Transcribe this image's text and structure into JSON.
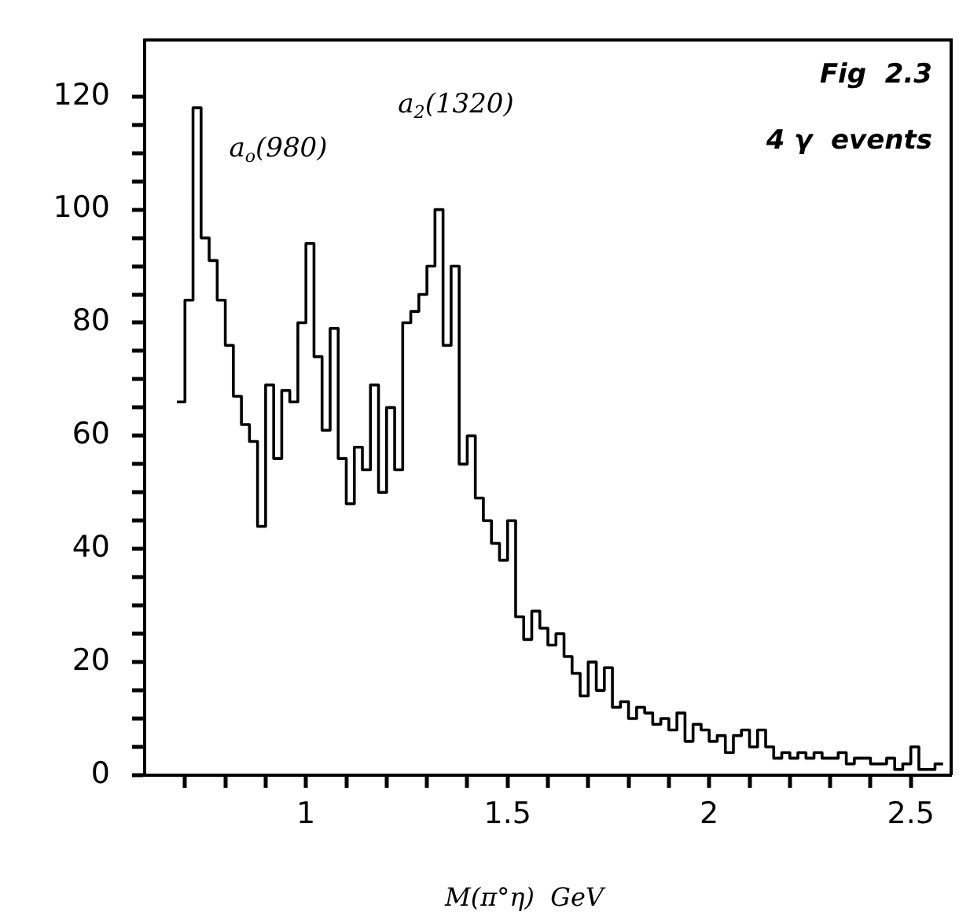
{
  "chart_data": {
    "type": "histogram",
    "xlabel": "M(π°η)  GeV",
    "annotations": [
      "a$_{o}$(980)",
      "a$_{2}$(1320)",
      "Fig  2.3",
      "4 γ  events"
    ],
    "bins": [
      0.68,
      0.7,
      0.72,
      0.74,
      0.76,
      0.78,
      0.8,
      0.82,
      0.84,
      0.86,
      0.88,
      0.9,
      0.92,
      0.94,
      0.96,
      0.98,
      1.0,
      1.02,
      1.04,
      1.06,
      1.08,
      1.1,
      1.12,
      1.14,
      1.16,
      1.18,
      1.2,
      1.22,
      1.24,
      1.26,
      1.28,
      1.3,
      1.32,
      1.34,
      1.36,
      1.38,
      1.4,
      1.42,
      1.44,
      1.46,
      1.48,
      1.5,
      1.52,
      1.54,
      1.56,
      1.58,
      1.6,
      1.62,
      1.64,
      1.66,
      1.68,
      1.7,
      1.72,
      1.74,
      1.76,
      1.78,
      1.8,
      1.82,
      1.84,
      1.86,
      1.88,
      1.9,
      1.92,
      1.94,
      1.96,
      1.98,
      2.0,
      2.02,
      2.04,
      2.06,
      2.08,
      2.1,
      2.12,
      2.14,
      2.16,
      2.18,
      2.2,
      2.22,
      2.24,
      2.26,
      2.28,
      2.3,
      2.32,
      2.34,
      2.36,
      2.38,
      2.4,
      2.42,
      2.44,
      2.46,
      2.48,
      2.5,
      2.52,
      2.54,
      2.56,
      2.58
    ],
    "values": [
      66,
      84,
      118,
      95,
      91,
      84,
      76,
      67,
      62,
      59,
      44,
      69,
      56,
      68,
      66,
      80,
      94,
      74,
      61,
      79,
      56,
      48,
      58,
      54,
      69,
      50,
      65,
      54,
      80,
      82,
      85,
      90,
      100,
      76,
      90,
      55,
      60,
      49,
      45,
      41,
      38,
      45,
      28,
      24,
      29,
      26,
      23,
      25,
      21,
      18,
      14,
      20,
      15,
      19,
      12,
      13,
      10,
      12,
      11,
      9,
      10,
      8,
      11,
      6,
      9,
      8,
      6,
      7,
      4,
      7,
      8,
      5,
      8,
      5,
      3,
      4,
      3,
      4,
      3,
      4,
      3,
      3,
      4,
      2,
      3,
      3,
      2,
      2,
      3,
      1,
      2,
      5,
      1,
      1,
      2
    ],
    "color": "#000000",
    "xlim": [
      0.6,
      2.6
    ],
    "xticks": [
      {
        "value": 0.7,
        "label": null
      },
      {
        "value": 0.8,
        "label": null
      },
      {
        "value": 0.9,
        "label": null
      },
      1,
      {
        "value": 1.1,
        "label": null
      },
      {
        "value": 1.2,
        "label": null
      },
      {
        "value": 1.3,
        "label": null
      },
      {
        "value": 1.4,
        "label": null
      },
      1.5,
      {
        "value": 1.6,
        "label": null
      },
      {
        "value": 1.7,
        "label": null
      },
      {
        "value": 1.8,
        "label": null
      },
      {
        "value": 1.9,
        "label": null
      },
      2,
      {
        "value": 2.1,
        "label": null
      },
      {
        "value": 2.2,
        "label": null
      },
      {
        "value": 2.3,
        "label": null
      },
      {
        "value": 2.4,
        "label": null
      },
      2.5
    ],
    "ylim": [
      0,
      130
    ],
    "yticks": [
      0,
      {
        "value": 5,
        "label": null
      },
      {
        "value": 10,
        "label": null
      },
      {
        "value": 15,
        "label": null
      },
      20,
      {
        "value": 25,
        "label": null
      },
      {
        "value": 30,
        "label": null
      },
      {
        "value": 35,
        "label": null
      },
      40,
      {
        "value": 45,
        "label": null
      },
      {
        "value": 50,
        "label": null
      },
      {
        "value": 55,
        "label": null
      },
      60,
      {
        "value": 65,
        "label": null
      },
      {
        "value": 70,
        "label": null
      },
      {
        "value": 75,
        "label": null
      },
      80,
      {
        "value": 85,
        "label": null
      },
      {
        "value": 90,
        "label": null
      },
      {
        "value": 95,
        "label": null
      },
      100,
      {
        "value": 105,
        "label": null
      },
      {
        "value": 110,
        "label": null
      },
      {
        "value": 115,
        "label": null
      },
      120
    ],
    "grid": false
  }
}
